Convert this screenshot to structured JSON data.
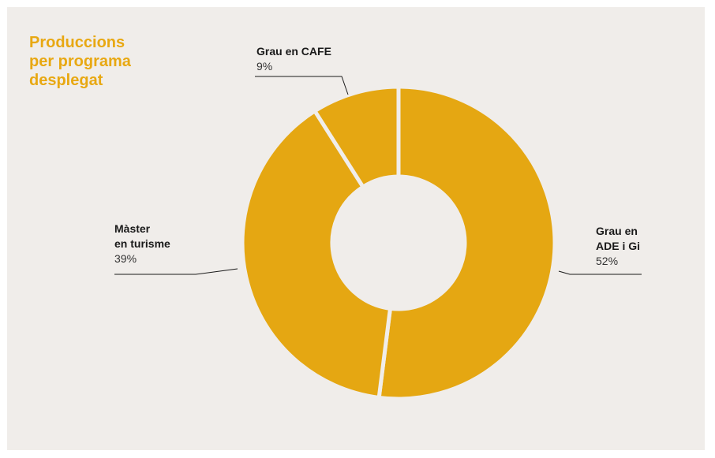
{
  "chart_data": {
    "type": "pie",
    "variant": "donut",
    "title": "Produccions\nper programa\ndesplegat",
    "slices": [
      {
        "name": "Grau en\nADE i Gi",
        "value": 52,
        "label": "52%"
      },
      {
        "name": "Màster\nen turisme",
        "value": 39,
        "label": "39%"
      },
      {
        "name": "Grau en CAFE",
        "value": 9,
        "label": "9%"
      }
    ],
    "start_angle_deg": 0,
    "direction": "clockwise",
    "legend": "none"
  },
  "colors": {
    "slice_fill": "#e5a712",
    "separator": "#f0edea",
    "title": "#e8a812",
    "background": "#f0edea",
    "leader_line": "#1a1a1a"
  }
}
